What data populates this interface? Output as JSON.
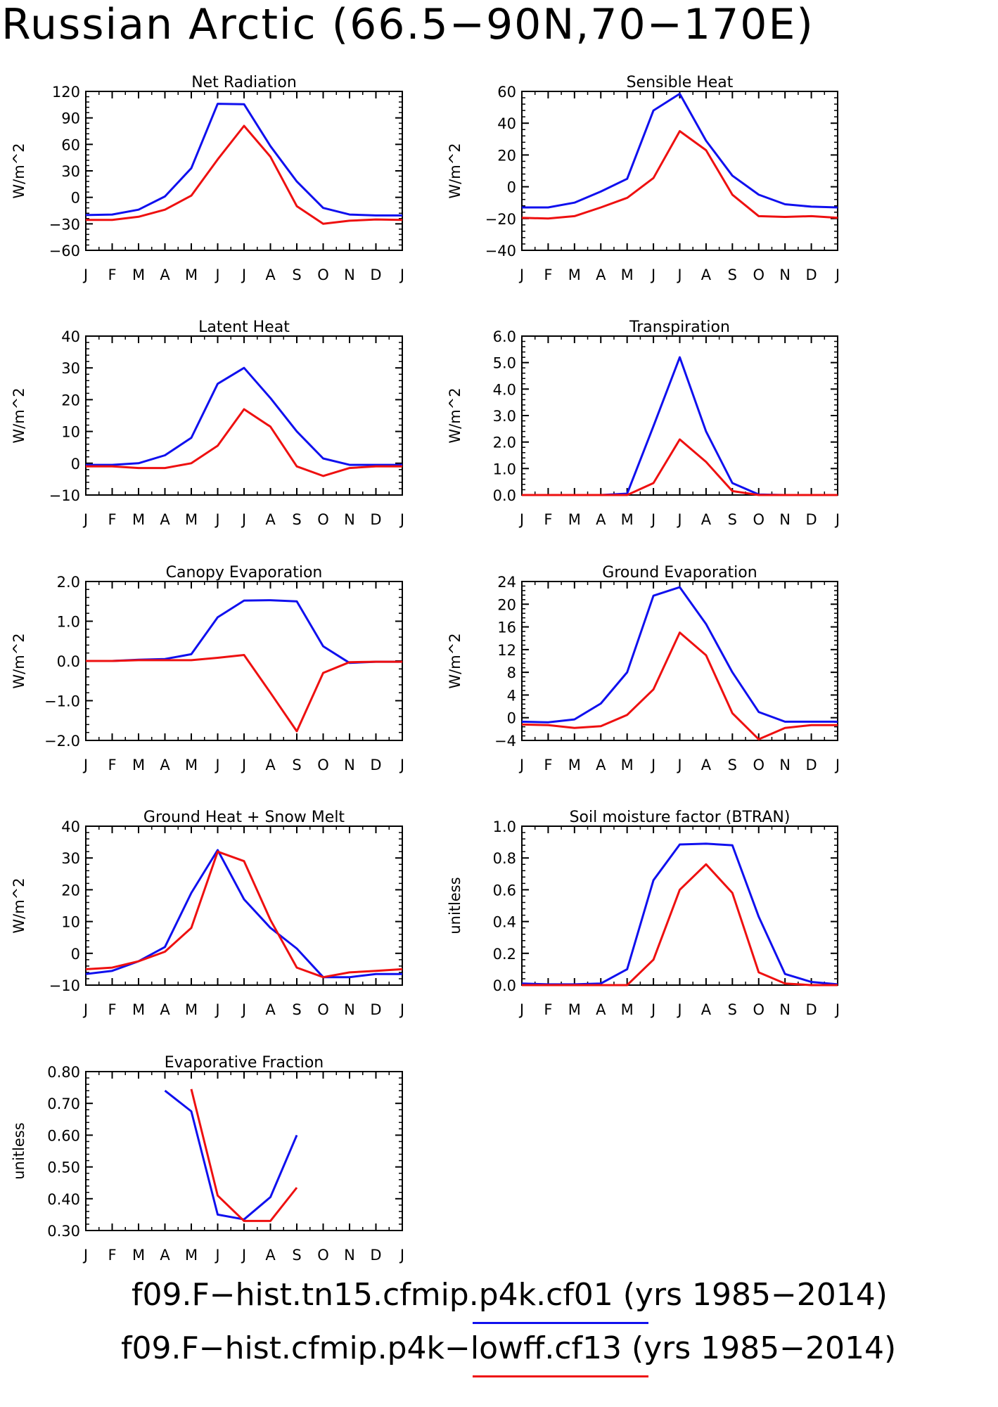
{
  "title": "Russian Arctic (66.5−90N,70−170E)",
  "legend": [
    {
      "label": "f09.F−hist.tn15.cfmip.p4k.cf01 (yrs 1985−2014)",
      "color": "#1010ee"
    },
    {
      "label": "f09.F−hist.cfmip.p4k−lowff.cf13 (yrs 1985−2014)",
      "color": "#ee1010"
    }
  ],
  "chart_data": [
    {
      "type": "line",
      "title": "Net Radiation",
      "ylabel": "W/m^2",
      "categories": [
        "J",
        "F",
        "M",
        "A",
        "M",
        "J",
        "J",
        "A",
        "S",
        "O",
        "N",
        "D",
        "J"
      ],
      "ylim": [
        -60,
        120
      ],
      "ticks": [
        -60,
        -30,
        0,
        30,
        60,
        90,
        120
      ],
      "tick_labels": [
        "−60",
        "−30",
        "0",
        "30",
        "60",
        "90",
        "120"
      ],
      "series": [
        {
          "color": "#1010ee",
          "values": [
            -20,
            -19.5,
            -14,
            1,
            33,
            106,
            105.5,
            58,
            18,
            -12,
            -19.5,
            -20.5,
            -20.5
          ]
        },
        {
          "color": "#ee1010",
          "values": [
            -25.5,
            -25.5,
            -22,
            -14,
            2,
            43,
            81,
            46,
            -10,
            -30,
            -26.5,
            -25,
            -25.5
          ]
        }
      ]
    },
    {
      "type": "line",
      "title": "Sensible Heat",
      "ylabel": "W/m^2",
      "categories": [
        "J",
        "F",
        "M",
        "A",
        "M",
        "J",
        "J",
        "A",
        "S",
        "O",
        "N",
        "D",
        "J"
      ],
      "ylim": [
        -40,
        60
      ],
      "ticks": [
        -40,
        -20,
        0,
        20,
        40,
        60
      ],
      "tick_labels": [
        "−40",
        "−20",
        "0",
        "20",
        "40",
        "60"
      ],
      "series": [
        {
          "color": "#1010ee",
          "values": [
            -13,
            -13,
            -10,
            -3,
            5,
            48,
            58.5,
            29,
            7,
            -5,
            -11,
            -12.5,
            -13
          ]
        },
        {
          "color": "#ee1010",
          "values": [
            -19.5,
            -20,
            -18.5,
            -13,
            -7,
            5.5,
            35,
            23,
            -5,
            -18.5,
            -19,
            -18.5,
            -19.5
          ]
        }
      ]
    },
    {
      "type": "line",
      "title": "Latent Heat",
      "ylabel": "W/m^2",
      "categories": [
        "J",
        "F",
        "M",
        "A",
        "M",
        "J",
        "J",
        "A",
        "S",
        "O",
        "N",
        "D",
        "J"
      ],
      "ylim": [
        -10,
        40
      ],
      "ticks": [
        -10,
        0,
        10,
        20,
        30,
        40
      ],
      "tick_labels": [
        "−10",
        "0",
        "10",
        "20",
        "30",
        "40"
      ],
      "series": [
        {
          "color": "#1010ee",
          "values": [
            -0.5,
            -0.5,
            0,
            2.5,
            8,
            25,
            30,
            20.5,
            10,
            1.5,
            -0.5,
            -0.5,
            -0.5
          ]
        },
        {
          "color": "#ee1010",
          "values": [
            -1,
            -1,
            -1.5,
            -1.5,
            0,
            5.5,
            17,
            11.5,
            -1,
            -4,
            -1.5,
            -1,
            -1
          ]
        }
      ]
    },
    {
      "type": "line",
      "title": "Transpiration",
      "ylabel": "W/m^2",
      "categories": [
        "J",
        "F",
        "M",
        "A",
        "M",
        "J",
        "J",
        "A",
        "S",
        "O",
        "N",
        "D",
        "J"
      ],
      "ylim": [
        0,
        6
      ],
      "ticks": [
        0,
        1,
        2,
        3,
        4,
        5,
        6
      ],
      "tick_labels": [
        "0.0",
        "1.0",
        "2.0",
        "3.0",
        "4.0",
        "5.0",
        "6.0"
      ],
      "series": [
        {
          "color": "#1010ee",
          "values": [
            0,
            0,
            0,
            0,
            0.05,
            2.6,
            5.2,
            2.4,
            0.45,
            0.02,
            0,
            0,
            0
          ]
        },
        {
          "color": "#ee1010",
          "values": [
            0,
            0,
            0,
            0,
            0,
            0.45,
            2.1,
            1.25,
            0.15,
            0,
            0,
            0,
            0
          ]
        }
      ]
    },
    {
      "type": "line",
      "title": "Canopy Evaporation",
      "ylabel": "W/m^2",
      "categories": [
        "J",
        "F",
        "M",
        "A",
        "M",
        "J",
        "J",
        "A",
        "S",
        "O",
        "N",
        "D",
        "J"
      ],
      "ylim": [
        -2,
        2
      ],
      "ticks": [
        -2,
        -1,
        0,
        1,
        2
      ],
      "tick_labels": [
        "−2.0",
        "−1.0",
        "0.0",
        "1.0",
        "2.0"
      ],
      "series": [
        {
          "color": "#1010ee",
          "values": [
            0,
            0,
            0.03,
            0.05,
            0.17,
            1.1,
            1.52,
            1.53,
            1.5,
            0.37,
            -0.05,
            -0.02,
            -0.02
          ]
        },
        {
          "color": "#ee1010",
          "values": [
            0,
            0,
            0.02,
            0.02,
            0.02,
            0.08,
            0.15,
            -0.8,
            -1.77,
            -0.3,
            -0.03,
            -0.02,
            -0.02
          ]
        }
      ]
    },
    {
      "type": "line",
      "title": "Ground Evaporation",
      "ylabel": "W/m^2",
      "categories": [
        "J",
        "F",
        "M",
        "A",
        "M",
        "J",
        "J",
        "A",
        "S",
        "O",
        "N",
        "D",
        "J"
      ],
      "ylim": [
        -4,
        24
      ],
      "ticks": [
        -4,
        0,
        4,
        8,
        12,
        16,
        20,
        24
      ],
      "tick_labels": [
        "−4",
        "0",
        "4",
        "8",
        "12",
        "16",
        "20",
        "24"
      ],
      "series": [
        {
          "color": "#1010ee",
          "values": [
            -0.7,
            -0.8,
            -0.3,
            2.5,
            8,
            21.5,
            23,
            16.5,
            8,
            1,
            -0.7,
            -0.7,
            -0.7
          ]
        },
        {
          "color": "#ee1010",
          "values": [
            -1.2,
            -1.3,
            -1.8,
            -1.5,
            0.5,
            5,
            15,
            11,
            0.8,
            -3.8,
            -1.8,
            -1.3,
            -1.3
          ]
        }
      ]
    },
    {
      "type": "line",
      "title": "Ground Heat + Snow Melt",
      "ylabel": "W/m^2",
      "categories": [
        "J",
        "F",
        "M",
        "A",
        "M",
        "J",
        "J",
        "A",
        "S",
        "O",
        "N",
        "D",
        "J"
      ],
      "ylim": [
        -10,
        40
      ],
      "ticks": [
        -10,
        0,
        10,
        20,
        30,
        40
      ],
      "tick_labels": [
        "−10",
        "0",
        "10",
        "20",
        "30",
        "40"
      ],
      "series": [
        {
          "color": "#1010ee",
          "values": [
            -6.5,
            -5.5,
            -2.5,
            2,
            19,
            32.5,
            17,
            8,
            1.5,
            -7.5,
            -7.5,
            -6.5,
            -6.5
          ]
        },
        {
          "color": "#ee1010",
          "values": [
            -5,
            -4.5,
            -2.5,
            0.5,
            8,
            32,
            29,
            10.5,
            -4.5,
            -7.5,
            -6,
            -5.5,
            -5
          ]
        }
      ]
    },
    {
      "type": "line",
      "title": "Soil moisture factor (BTRAN)",
      "ylabel": "unitless",
      "categories": [
        "J",
        "F",
        "M",
        "A",
        "M",
        "J",
        "J",
        "A",
        "S",
        "O",
        "N",
        "D",
        "J"
      ],
      "ylim": [
        0,
        1
      ],
      "ticks": [
        0,
        0.2,
        0.4,
        0.6,
        0.8,
        1.0
      ],
      "tick_labels": [
        "0.0",
        "0.2",
        "0.4",
        "0.6",
        "0.8",
        "1.0"
      ],
      "series": [
        {
          "color": "#1010ee",
          "values": [
            0.01,
            0.005,
            0.005,
            0.01,
            0.1,
            0.66,
            0.885,
            0.89,
            0.88,
            0.43,
            0.07,
            0.02,
            0.005
          ]
        },
        {
          "color": "#ee1010",
          "values": [
            0,
            0,
            0,
            0,
            0,
            0.16,
            0.6,
            0.76,
            0.58,
            0.08,
            0.01,
            0,
            0
          ]
        }
      ]
    },
    {
      "type": "line",
      "title": "Evaporative Fraction",
      "ylabel": "unitless",
      "categories": [
        "J",
        "F",
        "M",
        "A",
        "M",
        "J",
        "J",
        "A",
        "S",
        "O",
        "N",
        "D",
        "J"
      ],
      "ylim": [
        0.3,
        0.8
      ],
      "ticks": [
        0.3,
        0.4,
        0.5,
        0.6,
        0.7,
        0.8
      ],
      "tick_labels": [
        "0.30",
        "0.40",
        "0.50",
        "0.60",
        "0.70",
        "0.80"
      ],
      "series": [
        {
          "color": "#1010ee",
          "values": [
            null,
            null,
            null,
            0.74,
            0.675,
            0.35,
            0.335,
            0.405,
            0.6,
            null,
            null,
            null,
            null
          ]
        },
        {
          "color": "#ee1010",
          "values": [
            null,
            null,
            null,
            null,
            0.745,
            0.41,
            0.33,
            0.33,
            0.435,
            null,
            null,
            null,
            null
          ]
        }
      ]
    }
  ]
}
